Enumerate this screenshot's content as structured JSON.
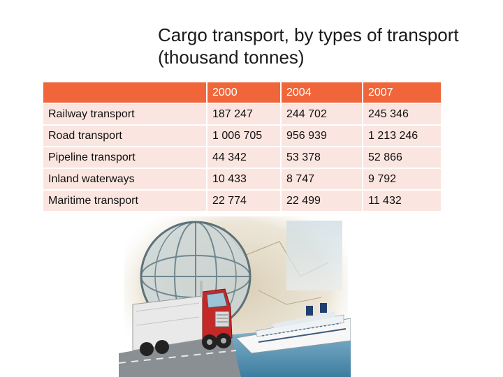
{
  "title": {
    "line1": "Cargo transport, by types of transport",
    "line2": "(thousand tonnes)"
  },
  "table": {
    "columns": [
      "",
      "2000",
      "2004",
      "2007"
    ],
    "rows": [
      {
        "label": "Railway transport",
        "values": [
          "187 247",
          "244 702",
          "245 346"
        ]
      },
      {
        "label": "Road transport",
        "values": [
          "1 006 705",
          "956 939",
          "1 213 246"
        ]
      },
      {
        "label": "Pipeline transport",
        "values": [
          "44 342",
          "53 378",
          "52 866"
        ]
      },
      {
        "label": "Inland waterways",
        "values": [
          "10 433",
          "8 747",
          "9 792"
        ]
      },
      {
        "label": "Maritime transport",
        "values": [
          "22 774",
          "22 499",
          "11 432"
        ]
      }
    ]
  },
  "colors": {
    "header_background": "#f0663a",
    "row_background": "#fbe5e0"
  },
  "illustration": {
    "icons": [
      "globe-icon",
      "truck-icon",
      "ship-icon",
      "map-background"
    ]
  }
}
